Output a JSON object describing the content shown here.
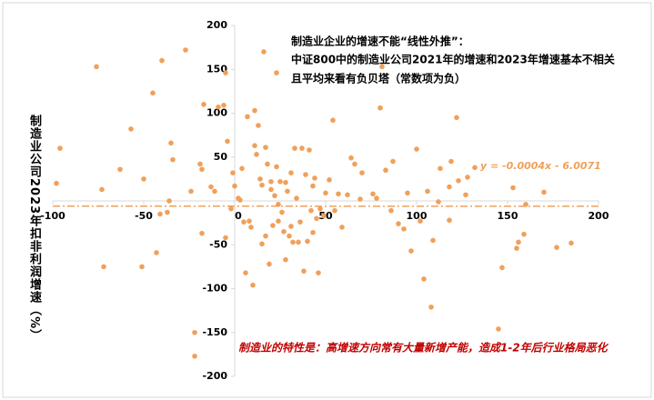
{
  "chart_data": {
    "type": "scatter",
    "y_label": "制造业公司2023年扣非利润增速（%）",
    "annotations": [
      "制造业企业的增速不能“线性外推”：",
      "中证800中的制造业公司2021年的增速和2023年增速基本不相关",
      "且平均来看有负贝塔（常数项为负）"
    ],
    "note": "制造业的特性是：高增速方向常有大量新增产能，造成1-2年后行业格局恶化",
    "trendline": {
      "label": "y = -0.0004x - 6.0071",
      "slope": -0.0004,
      "intercept": -6.0071,
      "color": "#f0a05a"
    },
    "color": "#f0a05a",
    "xlim": [
      -100,
      200
    ],
    "xticks": [
      -100,
      -50,
      0,
      50,
      100,
      150,
      200
    ],
    "ylim": [
      -200,
      200
    ],
    "yticks": [
      200,
      150,
      100,
      50,
      -50,
      -100,
      -150,
      -200
    ],
    "x": [
      -98,
      -96,
      -76,
      -73,
      -72,
      -63,
      -57,
      -50,
      -51,
      -45,
      -43,
      -40,
      -41,
      -37,
      -35,
      -34,
      -36,
      -27,
      -24,
      -22,
      -22,
      -19,
      -18,
      -18,
      -17,
      -13,
      -11,
      -9,
      -6,
      -5,
      -4,
      -5,
      -2,
      -1,
      0,
      2,
      3,
      4,
      5,
      6,
      7,
      8,
      9,
      10,
      11,
      11,
      12,
      13,
      14,
      15,
      15,
      16,
      17,
      17,
      18,
      19,
      20,
      20,
      21,
      22,
      23,
      23,
      24,
      24,
      25,
      26,
      27,
      28,
      28,
      29,
      30,
      31,
      31,
      32,
      33,
      34,
      35,
      36,
      37,
      38,
      39,
      40,
      41,
      42,
      43,
      43,
      44,
      45,
      46,
      47,
      49,
      50,
      52,
      54,
      55,
      57,
      59,
      62,
      64,
      66,
      69,
      70,
      76,
      78,
      80,
      81,
      83,
      86,
      87,
      90,
      93,
      95,
      97,
      100,
      102,
      104,
      106,
      108,
      109,
      112,
      113,
      118,
      118,
      119,
      122,
      123,
      127,
      128,
      132,
      145,
      147,
      153,
      155,
      156,
      159,
      160,
      170,
      177,
      185
    ],
    "y": [
      20,
      60,
      153,
      13,
      -75,
      36,
      82,
      25,
      -75,
      123,
      -59,
      160,
      -15,
      -13,
      66,
      47,
      0,
      172,
      11,
      -150,
      -177,
      42,
      36,
      -37,
      110,
      16,
      11,
      107,
      109,
      146,
      68,
      -42,
      -9,
      32,
      17,
      3,
      1,
      37,
      -24,
      -82,
      96,
      -23,
      -30,
      -96,
      103,
      63,
      53,
      86,
      25,
      18,
      -49,
      170,
      -40,
      61,
      42,
      -72,
      22,
      13,
      -28,
      6,
      39,
      146,
      -4,
      -23,
      22,
      -13,
      -35,
      21,
      -67,
      11,
      -40,
      -29,
      32,
      -47,
      60,
      3,
      -47,
      -24,
      60,
      -80,
      30,
      -46,
      58,
      -11,
      17,
      -36,
      26,
      -20,
      -82,
      -9,
      -17,
      9,
      24,
      92,
      -11,
      8,
      -30,
      7,
      49,
      42,
      2,
      32,
      8,
      3,
      106,
      153,
      35,
      -11,
      45,
      -26,
      -32,
      9,
      -57,
      59,
      -23,
      -89,
      11,
      -121,
      -45,
      -1,
      37,
      16,
      -22,
      45,
      95,
      23,
      7,
      27,
      38,
      -146,
      -76,
      15,
      -54,
      -47,
      -38,
      -4,
      10,
      -53,
      -48
    ]
  }
}
